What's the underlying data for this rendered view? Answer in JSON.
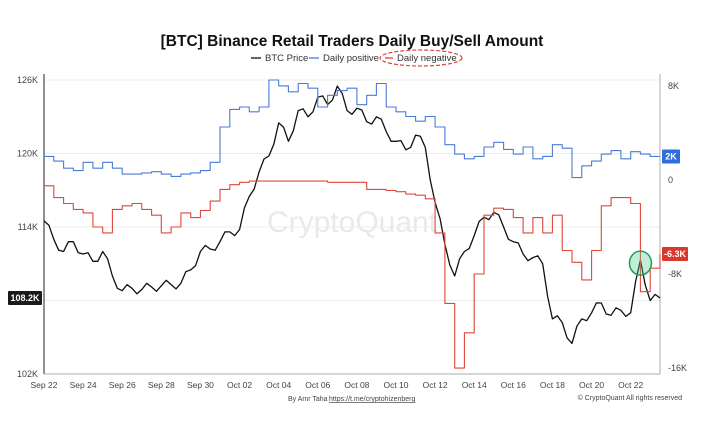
{
  "chart_data": {
    "type": "line",
    "title": "[BTC] Binance Retail Traders Daily Buy/Sell Amount",
    "legend": [
      {
        "name": "BTC Price",
        "color": "#111111"
      },
      {
        "name": "Daily positive",
        "color": "#4a7bd8"
      },
      {
        "name": "Daily negative",
        "color": "#e0453a",
        "highlighted": true
      }
    ],
    "x_ticks": [
      "Sep 22",
      "Sep 24",
      "Sep 26",
      "Sep 28",
      "Sep 30",
      "Oct 02",
      "Oct 04",
      "Oct 06",
      "Oct 08",
      "Oct 10",
      "Oct 12",
      "Oct 14",
      "Oct 16",
      "Oct 18",
      "Oct 20",
      "Oct 22"
    ],
    "x_range": [
      0,
      31.5
    ],
    "left_axis": {
      "ticks": [
        "126K",
        "120K",
        "114K",
        "108K",
        "102K"
      ],
      "values": [
        126,
        120,
        114,
        108,
        102
      ],
      "range": [
        102,
        126
      ]
    },
    "right_axis": {
      "ticks": [
        "8K",
        "0",
        "-8K",
        "-16K"
      ],
      "values": [
        8,
        0,
        -8,
        -16
      ],
      "range": [
        -16.5,
        8.5
      ]
    },
    "last_values": {
      "btc_price": "108.2K",
      "daily_positive": "2K",
      "daily_negative": "-6.3K"
    },
    "series": [
      {
        "name": "BTC Price",
        "axis": "left",
        "unit": "K USD",
        "points": [
          [
            0,
            114.5
          ],
          [
            0.5,
            113.0
          ],
          [
            1,
            112.0
          ],
          [
            1.5,
            112.8
          ],
          [
            2,
            111.8
          ],
          [
            2.5,
            111.2
          ],
          [
            3,
            112.0
          ],
          [
            3.5,
            110.0
          ],
          [
            4,
            108.8
          ],
          [
            4.5,
            109.0
          ],
          [
            5,
            108.9
          ],
          [
            5.5,
            109.1
          ],
          [
            6,
            109.2
          ],
          [
            6.5,
            109.3
          ],
          [
            7,
            109.4
          ],
          [
            7.5,
            110.5
          ],
          [
            8,
            112.0
          ],
          [
            8.5,
            112.2
          ],
          [
            9,
            112.8
          ],
          [
            9.5,
            113.6
          ],
          [
            10,
            113.8
          ],
          [
            10.5,
            116.5
          ],
          [
            11,
            118.5
          ],
          [
            11.5,
            119.8
          ],
          [
            12,
            122.5
          ],
          [
            12.5,
            121.0
          ],
          [
            13,
            123.5
          ],
          [
            13.5,
            123.0
          ],
          [
            14,
            124.6
          ],
          [
            14.5,
            124.0
          ],
          [
            15,
            125.5
          ],
          [
            15.5,
            123.5
          ],
          [
            16,
            123.7
          ],
          [
            16.5,
            122.6
          ],
          [
            17,
            123.0
          ],
          [
            17.5,
            121.8
          ],
          [
            18,
            121.0
          ],
          [
            18.5,
            120.3
          ],
          [
            19,
            121.5
          ],
          [
            19.5,
            120.5
          ],
          [
            20,
            116.0
          ],
          [
            20.5,
            112.6
          ],
          [
            21,
            110.0
          ],
          [
            21.5,
            112.0
          ],
          [
            22,
            113.3
          ],
          [
            22.5,
            114.8
          ],
          [
            23,
            115.2
          ],
          [
            23.5,
            114.0
          ],
          [
            24,
            112.8
          ],
          [
            24.5,
            111.8
          ],
          [
            25,
            111.5
          ],
          [
            25.5,
            111.0
          ],
          [
            26,
            106.5
          ],
          [
            26.5,
            106.2
          ],
          [
            27,
            104.5
          ],
          [
            27.5,
            106.5
          ],
          [
            28,
            107.0
          ],
          [
            28.5,
            107.8
          ],
          [
            29,
            106.8
          ],
          [
            29.5,
            107.2
          ],
          [
            30,
            107.0
          ],
          [
            30.5,
            111.3
          ],
          [
            31,
            108.0
          ],
          [
            31.5,
            108.2
          ]
        ]
      },
      {
        "name": "Daily positive",
        "axis": "right",
        "unit": "K",
        "points": [
          [
            0,
            2.0
          ],
          [
            0.5,
            1.6
          ],
          [
            1,
            1.0
          ],
          [
            1.5,
            0.8
          ],
          [
            2,
            1.5
          ],
          [
            2.5,
            1.0
          ],
          [
            3,
            1.5
          ],
          [
            3.5,
            1.0
          ],
          [
            4,
            0.5
          ],
          [
            4.5,
            0.5
          ],
          [
            5,
            0.6
          ],
          [
            5.5,
            0.7
          ],
          [
            6,
            0.5
          ],
          [
            6.5,
            0.3
          ],
          [
            7,
            0.5
          ],
          [
            7.5,
            0.6
          ],
          [
            8,
            0.8
          ],
          [
            8.5,
            1.5
          ],
          [
            9,
            4.5
          ],
          [
            9.5,
            6.0
          ],
          [
            10,
            6.2
          ],
          [
            10.5,
            5.8
          ],
          [
            11,
            6.2
          ],
          [
            11.5,
            8.5
          ],
          [
            12,
            8.0
          ],
          [
            12.5,
            7.5
          ],
          [
            13,
            8.2
          ],
          [
            13.5,
            7.8
          ],
          [
            14,
            6.2
          ],
          [
            14.5,
            7.2
          ],
          [
            15,
            7.6
          ],
          [
            15.5,
            7.8
          ],
          [
            16,
            6.4
          ],
          [
            16.5,
            7.2
          ],
          [
            17,
            8.2
          ],
          [
            17.5,
            6.2
          ],
          [
            18,
            5.8
          ],
          [
            18.5,
            5.4
          ],
          [
            19,
            5.0
          ],
          [
            19.5,
            5.4
          ],
          [
            20,
            4.5
          ],
          [
            20.5,
            3.0
          ],
          [
            21,
            2.2
          ],
          [
            21.5,
            1.8
          ],
          [
            22,
            2.0
          ],
          [
            22.5,
            2.8
          ],
          [
            23,
            3.2
          ],
          [
            23.5,
            2.6
          ],
          [
            24,
            2.2
          ],
          [
            24.5,
            2.8
          ],
          [
            25,
            1.8
          ],
          [
            25.5,
            2.0
          ],
          [
            26,
            3.0
          ],
          [
            26.5,
            2.7
          ],
          [
            27,
            0.2
          ],
          [
            27.5,
            1.2
          ],
          [
            28,
            1.6
          ],
          [
            28.5,
            2.2
          ],
          [
            29,
            2.5
          ],
          [
            29.5,
            1.8
          ],
          [
            30,
            2.4
          ],
          [
            30.5,
            2.2
          ],
          [
            31,
            2.0
          ],
          [
            31.5,
            2.0
          ]
        ]
      },
      {
        "name": "Daily negative",
        "axis": "right",
        "unit": "K",
        "points": [
          [
            0,
            -0.5
          ],
          [
            0.5,
            -1.5
          ],
          [
            1,
            -2.0
          ],
          [
            1.5,
            -2.5
          ],
          [
            2,
            -2.8
          ],
          [
            2.5,
            -4.0
          ],
          [
            3,
            -4.5
          ],
          [
            3.5,
            -2.5
          ],
          [
            4,
            -2.2
          ],
          [
            4.5,
            -2.0
          ],
          [
            5,
            -2.5
          ],
          [
            5.5,
            -3.0
          ],
          [
            6,
            -4.5
          ],
          [
            6.5,
            -4.0
          ],
          [
            7,
            -2.8
          ],
          [
            7.5,
            -3.2
          ],
          [
            8,
            -2.6
          ],
          [
            8.5,
            -1.8
          ],
          [
            9,
            -0.8
          ],
          [
            9.5,
            -0.4
          ],
          [
            10,
            -0.2
          ],
          [
            10.5,
            -0.1
          ],
          [
            11,
            -0.1
          ],
          [
            11.5,
            -0.1
          ],
          [
            12,
            -0.1
          ],
          [
            12.5,
            -0.1
          ],
          [
            13,
            -0.1
          ],
          [
            13.5,
            -0.1
          ],
          [
            14,
            -0.1
          ],
          [
            14.5,
            -0.2
          ],
          [
            15,
            -0.2
          ],
          [
            15.5,
            -0.2
          ],
          [
            16,
            -0.2
          ],
          [
            16.5,
            -0.8
          ],
          [
            17,
            -0.8
          ],
          [
            17.5,
            -0.9
          ],
          [
            18,
            -1.0
          ],
          [
            18.5,
            -1.2
          ],
          [
            19,
            -1.3
          ],
          [
            19.5,
            -1.6
          ],
          [
            20,
            -4.5
          ],
          [
            20.5,
            -10.5
          ],
          [
            21,
            -16.0
          ],
          [
            21.5,
            -13.0
          ],
          [
            22,
            -8.0
          ],
          [
            22.5,
            -3.0
          ],
          [
            23,
            -2.4
          ],
          [
            23.5,
            -2.5
          ],
          [
            24,
            -3.2
          ],
          [
            24.5,
            -4.5
          ],
          [
            25,
            -3.2
          ],
          [
            25.5,
            -4.5
          ],
          [
            26,
            -3.0
          ],
          [
            26.5,
            -6.0
          ],
          [
            27,
            -7.0
          ],
          [
            27.5,
            -8.5
          ],
          [
            28,
            -6.0
          ],
          [
            28.5,
            -2.2
          ],
          [
            29,
            -1.5
          ],
          [
            29.5,
            -1.5
          ],
          [
            30,
            -2.0
          ],
          [
            30.5,
            -9.5
          ],
          [
            31,
            -7.5
          ],
          [
            31.5,
            -6.3
          ]
        ]
      }
    ],
    "annotations": [
      "Daily negative legend circled",
      "green circle around latest price low"
    ]
  },
  "footer": {
    "credit_prefix": "By Amr Taha",
    "credit_link": "https://t.me/cryptohizenberg",
    "copyright": "© CryptoQuant All rights reserved"
  },
  "watermark": "CryptoQuant"
}
